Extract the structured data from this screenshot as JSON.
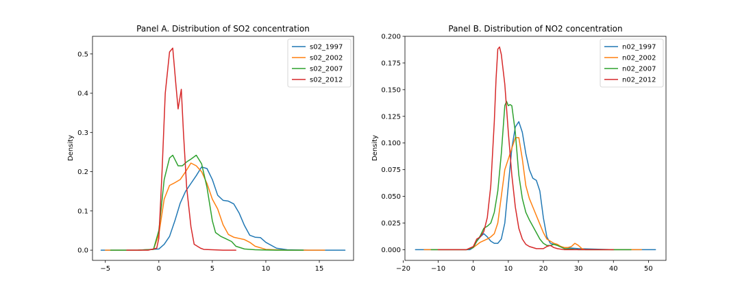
{
  "chart_data": [
    {
      "type": "line",
      "title": "Panel A. Distribution of SO2 concentration",
      "xlabel": "",
      "ylabel": "Density",
      "xlim": [
        -6.2,
        18.2
      ],
      "ylim": [
        -0.026,
        0.545
      ],
      "xticks": [
        -5,
        0,
        5,
        10,
        15
      ],
      "xtick_labels": [
        "−5",
        "0",
        "5",
        "10",
        "15"
      ],
      "yticks": [
        0.0,
        0.1,
        0.2,
        0.3,
        0.4,
        0.5
      ],
      "ytick_labels": [
        "0.0",
        "0.1",
        "0.2",
        "0.3",
        "0.4",
        "0.5"
      ],
      "grid": false,
      "legend_position": "top-right",
      "series": [
        {
          "name": "s02_1997",
          "color": "#1f77b4",
          "x": [
            -5.4,
            -2,
            0,
            0.5,
            1,
            1.5,
            2,
            2.5,
            3,
            3.5,
            4,
            4.5,
            5,
            5.5,
            6,
            6.5,
            7,
            7.5,
            8,
            8.5,
            9,
            9.5,
            10,
            11,
            12,
            14,
            17.4
          ],
          "y": [
            0,
            0,
            0.003,
            0.015,
            0.035,
            0.075,
            0.12,
            0.15,
            0.17,
            0.19,
            0.212,
            0.208,
            0.18,
            0.14,
            0.127,
            0.125,
            0.118,
            0.095,
            0.063,
            0.038,
            0.033,
            0.032,
            0.02,
            0.005,
            0.001,
            0,
            0
          ]
        },
        {
          "name": "s02_2002",
          "color": "#ff7f0e",
          "x": [
            -5,
            -2,
            -0.5,
            0,
            0.5,
            1,
            1.5,
            2,
            2.5,
            3,
            3.5,
            4,
            4.5,
            5,
            5.5,
            6,
            6.5,
            7,
            7.5,
            8,
            8.5,
            9,
            10,
            12,
            15.5
          ],
          "y": [
            0,
            0,
            0.002,
            0.04,
            0.13,
            0.165,
            0.172,
            0.18,
            0.2,
            0.222,
            0.215,
            0.2,
            0.17,
            0.13,
            0.105,
            0.065,
            0.04,
            0.033,
            0.03,
            0.027,
            0.02,
            0.01,
            0.002,
            0,
            0
          ]
        },
        {
          "name": "s02_2007",
          "color": "#2ca02c",
          "x": [
            -4.5,
            -2,
            -0.5,
            0,
            0.5,
            1,
            1.3,
            1.8,
            2.2,
            2.6,
            3,
            3.5,
            4,
            4.5,
            5,
            5.3,
            5.8,
            6.2,
            6.8,
            7.2,
            8,
            9,
            11,
            13.5
          ],
          "y": [
            0,
            0,
            0.002,
            0.05,
            0.18,
            0.235,
            0.242,
            0.215,
            0.215,
            0.225,
            0.232,
            0.242,
            0.22,
            0.16,
            0.075,
            0.045,
            0.035,
            0.03,
            0.022,
            0.01,
            0.003,
            0.001,
            0,
            0
          ]
        },
        {
          "name": "s02_2012",
          "color": "#d62728",
          "x": [
            -3,
            -1,
            -0.2,
            0,
            0.3,
            0.6,
            1,
            1.3,
            1.6,
            1.8,
            2.1,
            2.3,
            2.6,
            3,
            3.3,
            3.6,
            3.9,
            4.2,
            5,
            6,
            7.2
          ],
          "y": [
            0,
            0,
            0.005,
            0.03,
            0.2,
            0.4,
            0.505,
            0.515,
            0.42,
            0.36,
            0.41,
            0.3,
            0.16,
            0.06,
            0.015,
            0.01,
            0.005,
            0.002,
            0.001,
            0,
            0
          ]
        }
      ]
    },
    {
      "type": "line",
      "title": "Panel B. Distribution of NO2 concentration",
      "xlabel": "",
      "ylabel": "Density",
      "xlim": [
        -19.5,
        55
      ],
      "ylim": [
        -0.01,
        0.2
      ],
      "xticks": [
        -20,
        -10,
        0,
        10,
        20,
        30,
        40,
        50
      ],
      "xtick_labels": [
        "−20",
        "−10",
        "0",
        "10",
        "20",
        "30",
        "40",
        "50"
      ],
      "yticks": [
        0.0,
        0.025,
        0.05,
        0.075,
        0.1,
        0.125,
        0.15,
        0.175,
        0.2
      ],
      "ytick_labels": [
        "0.000",
        "0.025",
        "0.050",
        "0.075",
        "0.100",
        "0.125",
        "0.150",
        "0.175",
        "0.200"
      ],
      "grid": false,
      "legend_position": "top-right",
      "series": [
        {
          "name": "n02_1997",
          "color": "#1f77b4",
          "x": [
            -16.5,
            -5,
            -1,
            0,
            1,
            2,
            3,
            4,
            5,
            6,
            7,
            8,
            9,
            10,
            11,
            12,
            13,
            14,
            15,
            16,
            17,
            18,
            19,
            20,
            21,
            22,
            24,
            26,
            30,
            40,
            52
          ],
          "y": [
            0,
            0,
            0,
            0.002,
            0.008,
            0.012,
            0.015,
            0.012,
            0.008,
            0.006,
            0.006,
            0.01,
            0.025,
            0.06,
            0.095,
            0.115,
            0.12,
            0.11,
            0.09,
            0.075,
            0.067,
            0.065,
            0.055,
            0.03,
            0.012,
            0.006,
            0.004,
            0.002,
            0.001,
            0,
            0
          ]
        },
        {
          "name": "n02_2002",
          "color": "#ff7f0e",
          "x": [
            -14,
            -2,
            0,
            2,
            4,
            5,
            6,
            7,
            8,
            9,
            10,
            11,
            12,
            13,
            14,
            15,
            16,
            17,
            18,
            19,
            20,
            21,
            22,
            23,
            24,
            25,
            26,
            27,
            28,
            29,
            30,
            31,
            32,
            35,
            48
          ],
          "y": [
            0,
            0,
            0.002,
            0.007,
            0.01,
            0.012,
            0.015,
            0.025,
            0.05,
            0.075,
            0.085,
            0.095,
            0.105,
            0.105,
            0.085,
            0.06,
            0.048,
            0.04,
            0.032,
            0.024,
            0.016,
            0.01,
            0.008,
            0.006,
            0.005,
            0.003,
            0.002,
            0.002,
            0.003,
            0.006,
            0.004,
            0.001,
            0,
            0,
            0
          ]
        },
        {
          "name": "n02_2007",
          "color": "#2ca02c",
          "x": [
            -12,
            -2,
            0,
            1,
            2,
            3,
            4,
            5,
            6,
            7,
            8,
            9,
            9.5,
            10,
            10.5,
            11,
            12,
            13,
            14,
            15,
            16,
            17,
            18,
            19,
            20,
            21,
            22,
            23,
            24,
            26,
            30,
            45
          ],
          "y": [
            0,
            0,
            0.002,
            0.008,
            0.013,
            0.02,
            0.022,
            0.025,
            0.035,
            0.055,
            0.09,
            0.135,
            0.139,
            0.135,
            0.136,
            0.135,
            0.11,
            0.07,
            0.048,
            0.035,
            0.028,
            0.022,
            0.016,
            0.01,
            0.006,
            0.004,
            0.004,
            0.005,
            0.004,
            0.001,
            0,
            0
          ]
        },
        {
          "name": "n02_2012",
          "color": "#d62728",
          "x": [
            -10,
            -2,
            0,
            1,
            2,
            3,
            4,
            5,
            6,
            6.5,
            7,
            7.5,
            8,
            9,
            10,
            11,
            12,
            13,
            14,
            15,
            16,
            18,
            20,
            21,
            22,
            23,
            24,
            26,
            30,
            40
          ],
          "y": [
            0,
            0,
            0.003,
            0.01,
            0.012,
            0.017,
            0.03,
            0.06,
            0.12,
            0.16,
            0.188,
            0.19,
            0.183,
            0.155,
            0.11,
            0.07,
            0.04,
            0.02,
            0.01,
            0.005,
            0.003,
            0.001,
            0.001,
            0.003,
            0.004,
            0.002,
            0.001,
            0,
            0,
            0
          ]
        }
      ]
    }
  ]
}
